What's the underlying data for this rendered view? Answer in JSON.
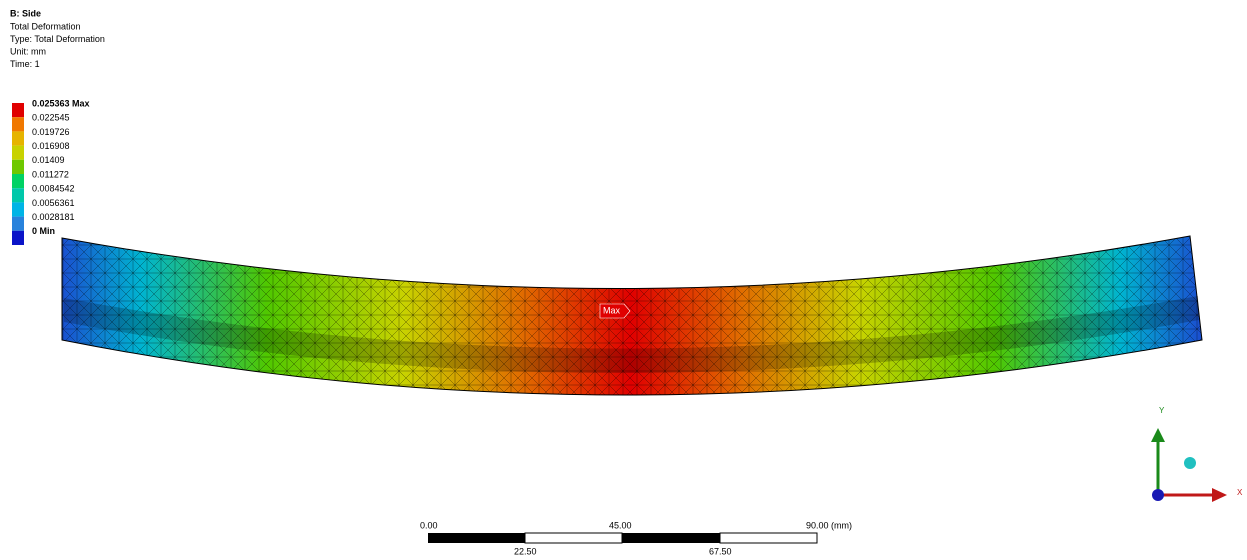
{
  "header": {
    "title": "B: Side",
    "lines": [
      "Total Deformation",
      "Type: Total Deformation",
      "Unit: mm",
      "Time: 1"
    ]
  },
  "legend": [
    {
      "label": "0.025363 Max",
      "color": "#e00000"
    },
    {
      "label": "0.022545",
      "color": "#f07800"
    },
    {
      "label": "0.019726",
      "color": "#e6b400"
    },
    {
      "label": "0.016908",
      "color": "#c8d200"
    },
    {
      "label": "0.01409",
      "color": "#6ec800"
    },
    {
      "label": "0.011272",
      "color": "#00d264"
    },
    {
      "label": "0.0084542",
      "color": "#00c8aa"
    },
    {
      "label": "0.0056361",
      "color": "#00b4e6"
    },
    {
      "label": "0.0028181",
      "color": "#2882dc"
    },
    {
      "label": "0 Min",
      "color": "#0a14c8"
    }
  ],
  "probe": "Max",
  "scale_bar": {
    "top_labels": [
      "0.00",
      "45.00",
      "90.00 (mm)"
    ],
    "bottom_labels": [
      "22.50",
      "67.50"
    ]
  },
  "triad": {
    "y": "Y",
    "x": "X"
  }
}
